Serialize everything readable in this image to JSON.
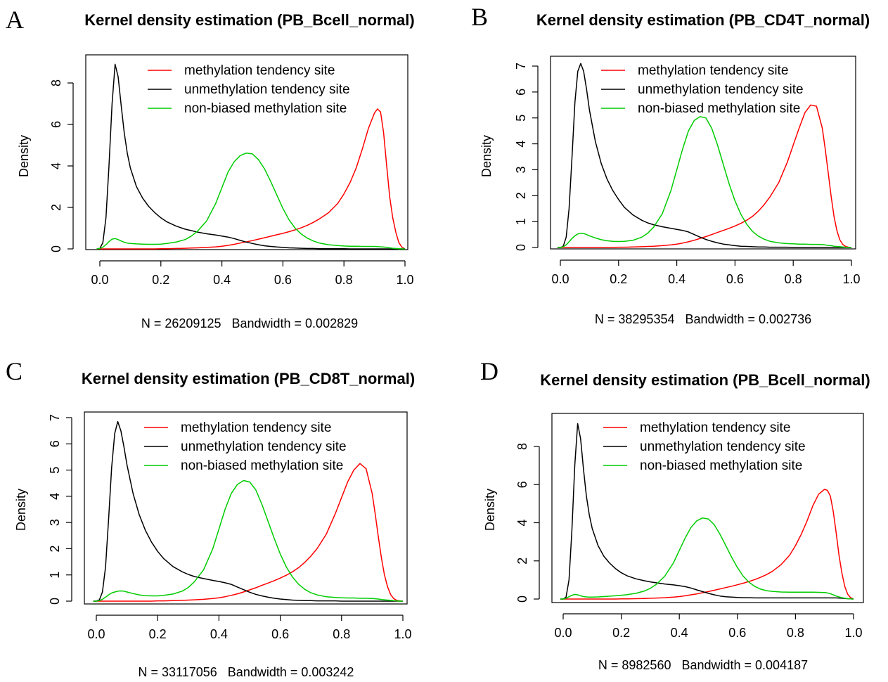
{
  "figure": {
    "background": "#ffffff"
  },
  "series_colors": {
    "methylation tendency site": "#ff0000",
    "unmethylation tendency site": "#000000",
    "non-biased methylation site": "#00cc00"
  },
  "chart_data": [
    {
      "panel": "A",
      "type": "line",
      "title": "Kernel density estimation (PB_Bcell_normal)",
      "xlabel": "N = 26209125   Bandwidth = 0.002829",
      "ylabel": "Density",
      "xlim": [
        -0.02,
        1.02
      ],
      "ylim": [
        0,
        9
      ],
      "xticks": [
        "0.0",
        "0.2",
        "0.4",
        "0.6",
        "0.8",
        "1.0"
      ],
      "yticks": [
        "0",
        "2",
        "4",
        "6",
        "8"
      ],
      "ytick_values": [
        0,
        2,
        4,
        6,
        8
      ],
      "legend": "top-center",
      "x": [
        -0.01,
        0.0,
        0.01,
        0.02,
        0.03,
        0.04,
        0.05,
        0.06,
        0.07,
        0.08,
        0.09,
        0.1,
        0.12,
        0.14,
        0.16,
        0.18,
        0.2,
        0.22,
        0.25,
        0.28,
        0.3,
        0.32,
        0.35,
        0.38,
        0.4,
        0.42,
        0.44,
        0.46,
        0.48,
        0.5,
        0.52,
        0.54,
        0.56,
        0.58,
        0.6,
        0.62,
        0.64,
        0.66,
        0.68,
        0.7,
        0.72,
        0.75,
        0.78,
        0.8,
        0.82,
        0.84,
        0.86,
        0.88,
        0.9,
        0.91,
        0.92,
        0.93,
        0.94,
        0.95,
        0.96,
        0.97,
        0.98,
        0.99,
        1.0
      ],
      "series": [
        {
          "name": "methylation tendency site",
          "values": [
            0,
            0,
            0,
            0,
            0,
            0,
            0,
            0,
            0,
            0,
            0,
            0,
            0,
            0,
            0,
            0,
            0.01,
            0.01,
            0.02,
            0.03,
            0.04,
            0.05,
            0.07,
            0.1,
            0.13,
            0.17,
            0.22,
            0.28,
            0.34,
            0.4,
            0.47,
            0.54,
            0.61,
            0.68,
            0.75,
            0.83,
            0.92,
            1.02,
            1.14,
            1.28,
            1.45,
            1.75,
            2.2,
            2.65,
            3.2,
            3.9,
            4.8,
            5.8,
            6.55,
            6.75,
            6.6,
            5.6,
            4.0,
            2.5,
            1.5,
            0.8,
            0.3,
            0.08,
            0.0
          ]
        },
        {
          "name": "unmethylation tendency site",
          "values": [
            0,
            0.02,
            0.3,
            1.5,
            4.0,
            7.0,
            8.9,
            8.3,
            6.9,
            5.6,
            4.6,
            3.9,
            3.0,
            2.45,
            2.05,
            1.75,
            1.5,
            1.3,
            1.1,
            0.95,
            0.88,
            0.81,
            0.73,
            0.67,
            0.62,
            0.57,
            0.5,
            0.41,
            0.33,
            0.26,
            0.2,
            0.15,
            0.12,
            0.09,
            0.07,
            0.05,
            0.04,
            0.03,
            0.02,
            0.02,
            0.01,
            0.01,
            0.01,
            0.01,
            0.0,
            0.0,
            0.0,
            0.0,
            0.0,
            0.0,
            0.0,
            0.0,
            0.0,
            0.0,
            0.0,
            0.0,
            0.0,
            0.0,
            0.0
          ]
        },
        {
          "name": "non-biased methylation site",
          "values": [
            0,
            0.02,
            0.08,
            0.2,
            0.35,
            0.47,
            0.5,
            0.45,
            0.38,
            0.32,
            0.28,
            0.26,
            0.24,
            0.23,
            0.22,
            0.22,
            0.23,
            0.26,
            0.33,
            0.45,
            0.62,
            0.85,
            1.35,
            2.2,
            2.95,
            3.7,
            4.2,
            4.5,
            4.62,
            4.58,
            4.3,
            3.85,
            3.25,
            2.6,
            1.95,
            1.4,
            1.0,
            0.72,
            0.52,
            0.38,
            0.28,
            0.2,
            0.16,
            0.14,
            0.13,
            0.13,
            0.12,
            0.12,
            0.12,
            0.11,
            0.1,
            0.09,
            0.07,
            0.05,
            0.03,
            0.02,
            0.01,
            0.0,
            0.0
          ]
        }
      ]
    },
    {
      "panel": "B",
      "type": "line",
      "title": "Kernel density estimation (PB_CD4T_normal)",
      "xlabel": "N = 38295354   Bandwidth = 0.002736",
      "ylabel": "Density",
      "xlim": [
        -0.02,
        1.02
      ],
      "ylim": [
        0,
        7.2
      ],
      "xticks": [
        "0.0",
        "0.2",
        "0.4",
        "0.6",
        "0.8",
        "1.0"
      ],
      "yticks": [
        "0",
        "1",
        "2",
        "3",
        "4",
        "5",
        "6",
        "7"
      ],
      "ytick_values": [
        0,
        1,
        2,
        3,
        4,
        5,
        6,
        7
      ],
      "legend": "top-center",
      "x": [
        -0.01,
        0.0,
        0.01,
        0.02,
        0.03,
        0.04,
        0.05,
        0.06,
        0.07,
        0.08,
        0.09,
        0.1,
        0.12,
        0.14,
        0.16,
        0.18,
        0.2,
        0.22,
        0.25,
        0.28,
        0.3,
        0.32,
        0.35,
        0.38,
        0.4,
        0.42,
        0.44,
        0.46,
        0.48,
        0.5,
        0.52,
        0.54,
        0.56,
        0.58,
        0.6,
        0.62,
        0.64,
        0.66,
        0.68,
        0.7,
        0.72,
        0.75,
        0.78,
        0.8,
        0.82,
        0.84,
        0.86,
        0.88,
        0.9,
        0.91,
        0.92,
        0.93,
        0.94,
        0.95,
        0.96,
        0.97,
        0.98,
        0.99,
        1.0
      ],
      "series": [
        {
          "name": "methylation tendency site",
          "values": [
            0,
            0,
            0,
            0,
            0,
            0,
            0,
            0,
            0,
            0,
            0,
            0,
            0,
            0,
            0,
            0,
            0.01,
            0.01,
            0.02,
            0.03,
            0.04,
            0.05,
            0.07,
            0.1,
            0.13,
            0.17,
            0.22,
            0.28,
            0.35,
            0.42,
            0.5,
            0.58,
            0.66,
            0.74,
            0.83,
            0.93,
            1.05,
            1.2,
            1.4,
            1.65,
            1.95,
            2.5,
            3.3,
            3.95,
            4.6,
            5.2,
            5.5,
            5.45,
            4.6,
            3.8,
            2.9,
            2.0,
            1.2,
            0.65,
            0.3,
            0.12,
            0.04,
            0.01,
            0.0
          ]
        },
        {
          "name": "unmethylation tendency site",
          "values": [
            0,
            0.0,
            0.05,
            0.4,
            1.5,
            3.5,
            5.6,
            6.8,
            7.1,
            6.8,
            6.1,
            5.3,
            4.1,
            3.25,
            2.65,
            2.2,
            1.85,
            1.55,
            1.25,
            1.05,
            0.95,
            0.88,
            0.8,
            0.74,
            0.7,
            0.66,
            0.6,
            0.5,
            0.4,
            0.31,
            0.24,
            0.18,
            0.13,
            0.1,
            0.07,
            0.05,
            0.04,
            0.03,
            0.02,
            0.02,
            0.01,
            0.01,
            0.01,
            0.0,
            0.0,
            0.0,
            0.0,
            0.0,
            0.0,
            0.0,
            0.0,
            0.0,
            0.0,
            0.0,
            0.0,
            0.0,
            0.0,
            0.0,
            0.0
          ]
        },
        {
          "name": "non-biased methylation site",
          "values": [
            0,
            0.0,
            0.03,
            0.1,
            0.22,
            0.35,
            0.45,
            0.52,
            0.55,
            0.54,
            0.5,
            0.45,
            0.37,
            0.3,
            0.26,
            0.24,
            0.23,
            0.24,
            0.28,
            0.4,
            0.55,
            0.78,
            1.3,
            2.2,
            3.0,
            3.8,
            4.5,
            4.9,
            5.05,
            5.0,
            4.6,
            3.95,
            3.2,
            2.45,
            1.8,
            1.28,
            0.9,
            0.62,
            0.44,
            0.32,
            0.24,
            0.18,
            0.15,
            0.14,
            0.13,
            0.13,
            0.12,
            0.12,
            0.11,
            0.1,
            0.08,
            0.07,
            0.05,
            0.04,
            0.03,
            0.02,
            0.01,
            0.0,
            0.0
          ]
        }
      ]
    },
    {
      "panel": "C",
      "type": "line",
      "title": "Kernel density estimation (PB_CD8T_normal)",
      "xlabel": "N = 33117056   Bandwidth = 0.003242",
      "ylabel": "Density",
      "xlim": [
        -0.02,
        1.02
      ],
      "ylim": [
        0,
        7.0
      ],
      "xticks": [
        "0.0",
        "0.2",
        "0.4",
        "0.6",
        "0.8",
        "1.0"
      ],
      "yticks": [
        "0",
        "1",
        "2",
        "3",
        "4",
        "5",
        "6",
        "7"
      ],
      "ytick_values": [
        0,
        1,
        2,
        3,
        4,
        5,
        6,
        7
      ],
      "legend": "top-center",
      "x": [
        -0.01,
        0.0,
        0.01,
        0.02,
        0.03,
        0.04,
        0.05,
        0.06,
        0.07,
        0.08,
        0.09,
        0.1,
        0.12,
        0.14,
        0.16,
        0.18,
        0.2,
        0.22,
        0.25,
        0.28,
        0.3,
        0.32,
        0.35,
        0.38,
        0.4,
        0.42,
        0.44,
        0.46,
        0.48,
        0.5,
        0.52,
        0.54,
        0.56,
        0.58,
        0.6,
        0.62,
        0.64,
        0.66,
        0.68,
        0.7,
        0.72,
        0.75,
        0.78,
        0.8,
        0.82,
        0.84,
        0.86,
        0.88,
        0.9,
        0.91,
        0.92,
        0.93,
        0.94,
        0.95,
        0.96,
        0.97,
        0.98,
        0.99,
        1.0
      ],
      "series": [
        {
          "name": "methylation tendency site",
          "values": [
            0,
            0,
            0,
            0,
            0,
            0,
            0,
            0,
            0,
            0,
            0,
            0,
            0,
            0,
            0,
            0,
            0.01,
            0.01,
            0.02,
            0.03,
            0.04,
            0.05,
            0.07,
            0.1,
            0.13,
            0.17,
            0.22,
            0.28,
            0.35,
            0.43,
            0.51,
            0.6,
            0.69,
            0.78,
            0.88,
            0.99,
            1.12,
            1.28,
            1.48,
            1.72,
            2.0,
            2.55,
            3.35,
            3.95,
            4.55,
            5.0,
            5.25,
            5.05,
            4.1,
            3.3,
            2.45,
            1.65,
            1.0,
            0.55,
            0.25,
            0.1,
            0.03,
            0.01,
            0.0
          ]
        },
        {
          "name": "unmethylation tendency site",
          "values": [
            0,
            0.0,
            0.05,
            0.35,
            1.3,
            3.1,
            5.1,
            6.4,
            6.85,
            6.5,
            5.9,
            5.2,
            4.1,
            3.3,
            2.7,
            2.25,
            1.9,
            1.62,
            1.32,
            1.12,
            1.02,
            0.94,
            0.86,
            0.79,
            0.75,
            0.7,
            0.64,
            0.54,
            0.44,
            0.34,
            0.26,
            0.2,
            0.15,
            0.11,
            0.08,
            0.06,
            0.04,
            0.03,
            0.02,
            0.02,
            0.01,
            0.01,
            0.01,
            0.0,
            0.0,
            0.0,
            0.0,
            0.0,
            0.0,
            0.0,
            0.0,
            0.0,
            0.0,
            0.0,
            0.0,
            0.0,
            0.0,
            0.0,
            0.0
          ]
        },
        {
          "name": "non-biased methylation site",
          "values": [
            0,
            0.0,
            0.02,
            0.07,
            0.15,
            0.24,
            0.31,
            0.35,
            0.38,
            0.39,
            0.38,
            0.35,
            0.29,
            0.24,
            0.21,
            0.2,
            0.2,
            0.22,
            0.27,
            0.38,
            0.52,
            0.74,
            1.2,
            2.0,
            2.75,
            3.5,
            4.1,
            4.45,
            4.6,
            4.55,
            4.25,
            3.7,
            3.05,
            2.4,
            1.8,
            1.3,
            0.92,
            0.64,
            0.45,
            0.32,
            0.24,
            0.17,
            0.14,
            0.13,
            0.12,
            0.12,
            0.11,
            0.11,
            0.1,
            0.09,
            0.08,
            0.06,
            0.05,
            0.04,
            0.03,
            0.02,
            0.01,
            0.0,
            0.0
          ]
        }
      ]
    },
    {
      "panel": "D",
      "type": "line",
      "title": "Kernel density estimation (PB_Bcell_normal)",
      "xlabel": "N = 8982560   Bandwidth = 0.004187",
      "ylabel": "Density",
      "xlim": [
        -0.02,
        1.02
      ],
      "ylim": [
        0,
        9.2
      ],
      "xticks": [
        "0.0",
        "0.2",
        "0.4",
        "0.6",
        "0.8",
        "1.0"
      ],
      "yticks": [
        "0",
        "2",
        "4",
        "6",
        "8"
      ],
      "ytick_values": [
        0,
        2,
        4,
        6,
        8
      ],
      "legend": "top-center",
      "x": [
        -0.01,
        0.0,
        0.01,
        0.02,
        0.03,
        0.04,
        0.05,
        0.06,
        0.07,
        0.08,
        0.09,
        0.1,
        0.12,
        0.14,
        0.16,
        0.18,
        0.2,
        0.22,
        0.25,
        0.28,
        0.3,
        0.32,
        0.35,
        0.38,
        0.4,
        0.42,
        0.44,
        0.46,
        0.48,
        0.5,
        0.52,
        0.54,
        0.56,
        0.58,
        0.6,
        0.62,
        0.64,
        0.66,
        0.68,
        0.7,
        0.72,
        0.75,
        0.78,
        0.8,
        0.82,
        0.84,
        0.86,
        0.88,
        0.9,
        0.91,
        0.92,
        0.93,
        0.94,
        0.95,
        0.96,
        0.97,
        0.98,
        0.99,
        1.0
      ],
      "series": [
        {
          "name": "methylation tendency site",
          "values": [
            0,
            0,
            0,
            0,
            0,
            0,
            0,
            0,
            0,
            0,
            0,
            0,
            0,
            0,
            0,
            0,
            0.01,
            0.01,
            0.02,
            0.03,
            0.04,
            0.05,
            0.07,
            0.1,
            0.13,
            0.17,
            0.22,
            0.27,
            0.33,
            0.39,
            0.46,
            0.53,
            0.6,
            0.67,
            0.75,
            0.83,
            0.92,
            1.02,
            1.14,
            1.28,
            1.45,
            1.8,
            2.3,
            2.8,
            3.4,
            4.1,
            4.9,
            5.5,
            5.75,
            5.7,
            5.4,
            4.6,
            3.5,
            2.3,
            1.35,
            0.65,
            0.25,
            0.07,
            0.0
          ]
        },
        {
          "name": "unmethylation tendency site",
          "values": [
            0,
            0.0,
            0.1,
            1.0,
            3.6,
            7.0,
            9.2,
            8.4,
            6.8,
            5.4,
            4.4,
            3.7,
            2.8,
            2.25,
            1.88,
            1.6,
            1.38,
            1.22,
            1.06,
            0.96,
            0.9,
            0.85,
            0.79,
            0.74,
            0.7,
            0.65,
            0.58,
            0.48,
            0.39,
            0.3,
            0.22,
            0.16,
            0.12,
            0.1,
            0.08,
            0.07,
            0.07,
            0.06,
            0.06,
            0.06,
            0.06,
            0.06,
            0.06,
            0.06,
            0.06,
            0.06,
            0.06,
            0.06,
            0.06,
            0.06,
            0.06,
            0.06,
            0.06,
            0.05,
            0.04,
            0.03,
            0.02,
            0.01,
            0.0
          ]
        },
        {
          "name": "non-biased methylation site",
          "values": [
            0,
            0.0,
            0.04,
            0.12,
            0.2,
            0.24,
            0.22,
            0.17,
            0.13,
            0.11,
            0.1,
            0.1,
            0.11,
            0.13,
            0.15,
            0.17,
            0.2,
            0.23,
            0.3,
            0.42,
            0.56,
            0.76,
            1.2,
            1.9,
            2.55,
            3.2,
            3.75,
            4.1,
            4.25,
            4.2,
            3.9,
            3.4,
            2.8,
            2.2,
            1.65,
            1.2,
            0.88,
            0.66,
            0.52,
            0.44,
            0.4,
            0.37,
            0.36,
            0.36,
            0.36,
            0.36,
            0.36,
            0.35,
            0.34,
            0.32,
            0.28,
            0.22,
            0.16,
            0.11,
            0.07,
            0.04,
            0.02,
            0.01,
            0.0
          ]
        }
      ]
    }
  ]
}
